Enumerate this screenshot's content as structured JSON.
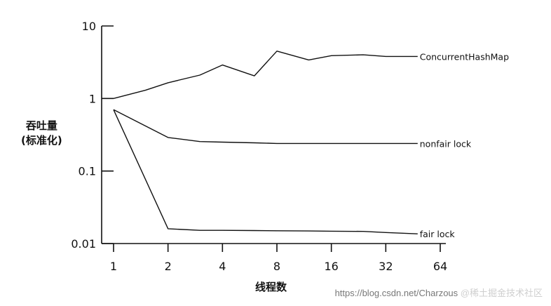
{
  "chart_data": {
    "type": "line",
    "title": "",
    "xlabel": "线程数",
    "ylabel_line1": "吞吐量",
    "ylabel_line2": "(标准化)",
    "yscale": "log",
    "ylim": [
      0.01,
      10
    ],
    "xscale": "log2",
    "xlim": [
      1,
      64
    ],
    "yticks": [
      {
        "value": 10,
        "label": "10"
      },
      {
        "value": 1,
        "label": "1"
      },
      {
        "value": 0.1,
        "label": "0.1"
      },
      {
        "value": 0.01,
        "label": "0.01"
      }
    ],
    "xticks": [
      {
        "value": 1,
        "label": "1"
      },
      {
        "value": 2,
        "label": "2"
      },
      {
        "value": 4,
        "label": "4"
      },
      {
        "value": 8,
        "label": "8"
      },
      {
        "value": 16,
        "label": "16"
      },
      {
        "value": 32,
        "label": "32"
      },
      {
        "value": 64,
        "label": "64"
      }
    ],
    "grid": false,
    "series": [
      {
        "name": "ConcurrentHashMap",
        "x": [
          1,
          1.5,
          2,
          3,
          4,
          6,
          8,
          12,
          16,
          24,
          32,
          48
        ],
        "y": [
          1.0,
          1.3,
          1.65,
          2.1,
          2.9,
          2.05,
          4.5,
          3.4,
          3.9,
          4.0,
          3.8,
          3.8
        ]
      },
      {
        "name": "nonfair lock",
        "x": [
          1,
          2,
          3,
          4,
          6,
          8,
          12,
          16,
          24,
          32,
          48
        ],
        "y": [
          0.7,
          0.29,
          0.255,
          0.25,
          0.245,
          0.24,
          0.24,
          0.24,
          0.24,
          0.24,
          0.24
        ]
      },
      {
        "name": "fair lock",
        "x": [
          1,
          2,
          3,
          4,
          6,
          8,
          12,
          16,
          24,
          32,
          48
        ],
        "y": [
          0.7,
          0.016,
          0.0152,
          0.0152,
          0.0151,
          0.015,
          0.0149,
          0.0148,
          0.0147,
          0.0142,
          0.0136
        ]
      }
    ]
  },
  "watermark": {
    "text": "https://blog.csdn.net/Charzous",
    "ghost_text": "@稀土掘金技术社区"
  }
}
